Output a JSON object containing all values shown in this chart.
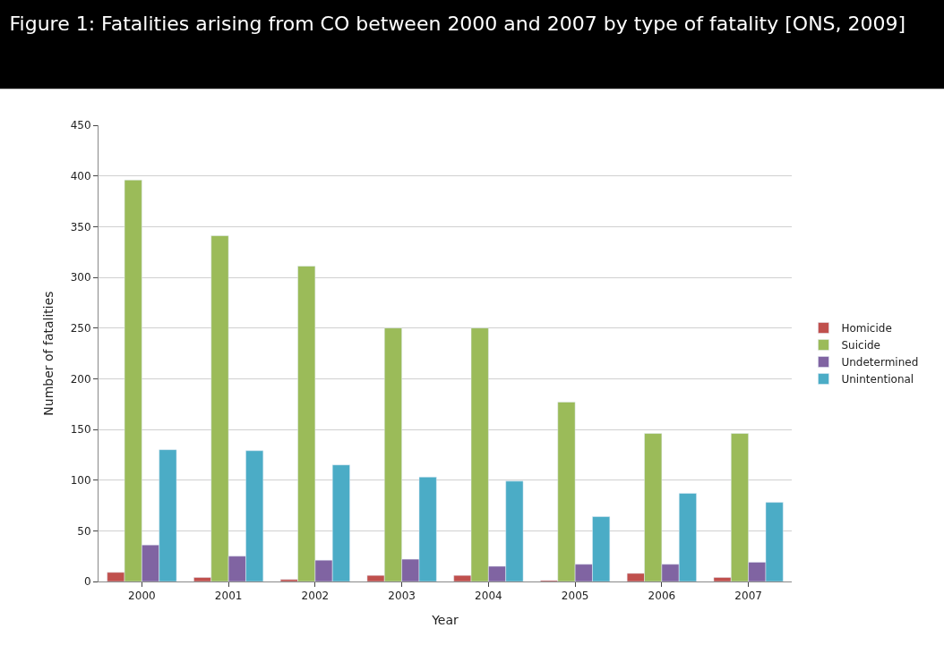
{
  "chart_data": {
    "type": "bar",
    "title": "Figure 1: Fatalities arising from CO between 2000 and 2007 by type of fatality [ONS, 2009]",
    "xlabel": "Year",
    "ylabel": "Number of fatalities",
    "categories": [
      "2000",
      "2001",
      "2002",
      "2003",
      "2004",
      "2005",
      "2006",
      "2007"
    ],
    "series": [
      {
        "name": "Homicide",
        "color": "#c0504d",
        "values": [
          9,
          4,
          2,
          6,
          6,
          1,
          8,
          4
        ]
      },
      {
        "name": "Suicide",
        "color": "#9bbb59",
        "values": [
          396,
          341,
          311,
          250,
          250,
          177,
          146,
          146
        ]
      },
      {
        "name": "Undetermined",
        "color": "#8064a2",
        "values": [
          36,
          25,
          21,
          22,
          15,
          17,
          17,
          19
        ]
      },
      {
        "name": "Unintentional",
        "color": "#4bacc6",
        "values": [
          130,
          129,
          115,
          103,
          99,
          64,
          87,
          78
        ]
      }
    ],
    "ylim": [
      0,
      450
    ],
    "yticks": [
      0,
      50,
      100,
      150,
      200,
      250,
      300,
      350,
      400,
      450
    ],
    "grid": "y",
    "legend": "right"
  }
}
